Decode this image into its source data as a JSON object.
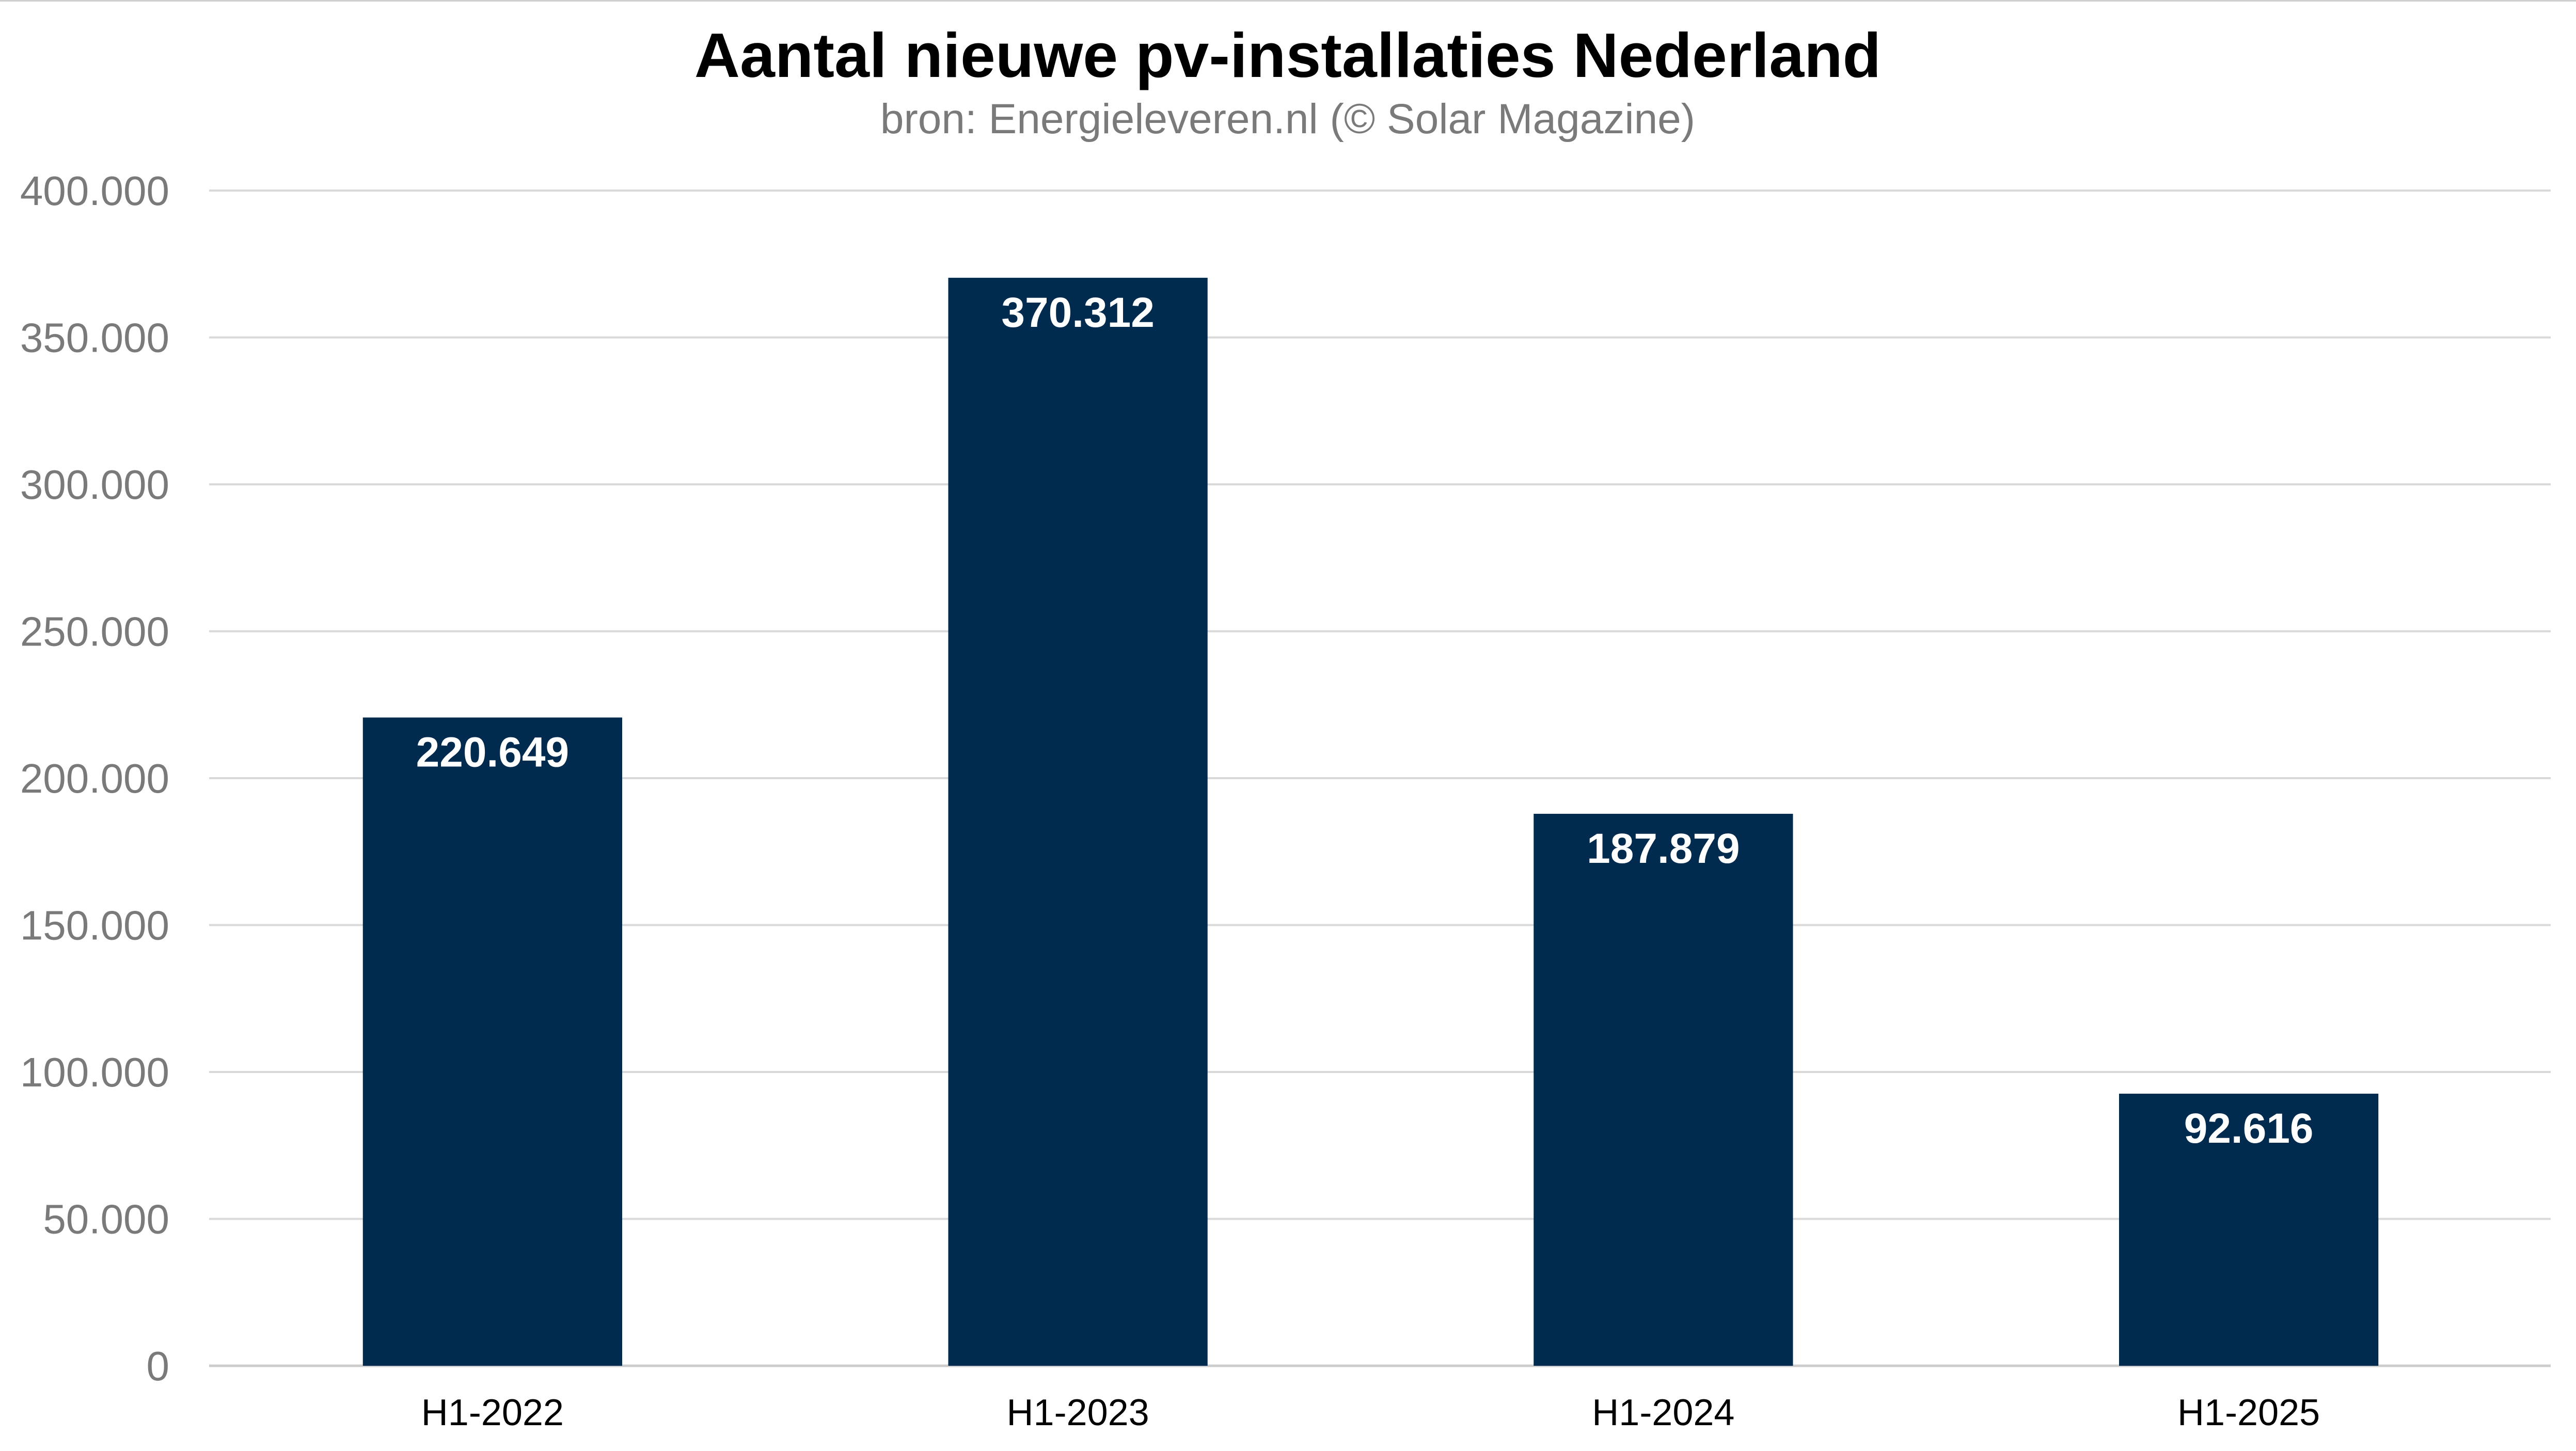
{
  "chart_data": {
    "type": "bar",
    "title": "Aantal nieuwe pv-installaties Nederland",
    "subtitle": "bron: Energieleveren.nl (© Solar Magazine)",
    "xlabel": "",
    "ylabel": "",
    "categories": [
      "H1-2022",
      "H1-2023",
      "H1-2024",
      "H1-2025"
    ],
    "values": [
      220649,
      370312,
      187879,
      92616
    ],
    "value_labels": [
      "220.649",
      "370.312",
      "187.879",
      "92.616"
    ],
    "ylim": [
      0,
      400000
    ],
    "yticks": [
      0,
      50000,
      100000,
      150000,
      200000,
      250000,
      300000,
      350000,
      400000
    ],
    "ytick_labels": [
      "0",
      "50.000",
      "100.000",
      "150.000",
      "200.000",
      "250.000",
      "300.000",
      "350.000",
      "400.000"
    ],
    "grid": true,
    "legend": "none",
    "colors": {
      "bar": "#002b4f",
      "grid": "#d9d9d9",
      "title": "#000000",
      "subtitle": "#7a7a7a",
      "axis_text": "#7a7a7a",
      "category_text": "#000000",
      "bar_label": "#ffffff"
    }
  }
}
